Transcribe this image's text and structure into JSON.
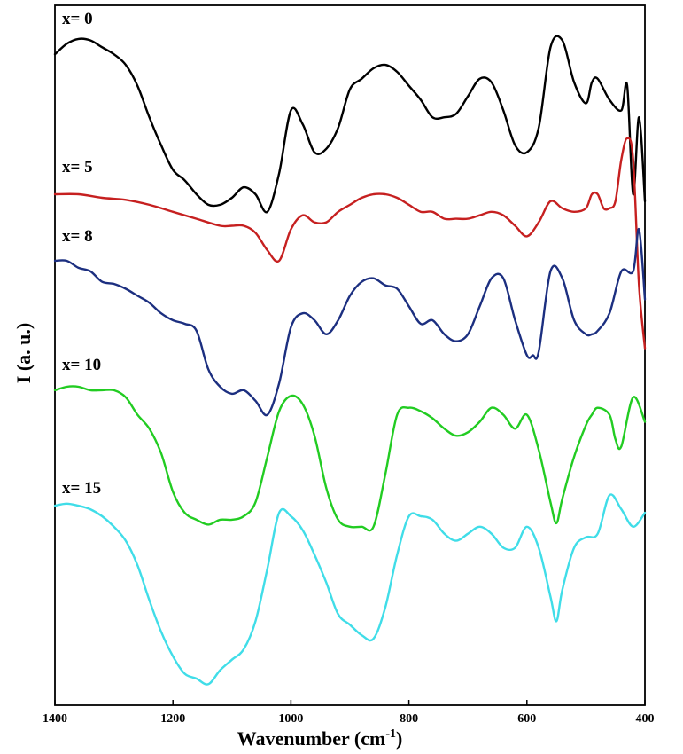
{
  "chart_data": {
    "type": "line",
    "xlabel": "Wavenumber (cm",
    "xlabel_superscript": "-1",
    "xlabel_close": ")",
    "ylabel": "I (a. u.)",
    "xlim": [
      1400,
      400
    ],
    "ylim": [
      0,
      100
    ],
    "x_reversed": true,
    "y_ticks_shown": false,
    "grid": false,
    "x_ticks": [
      {
        "value": 1400,
        "label": "1400"
      },
      {
        "value": 1200,
        "label": "1200"
      },
      {
        "value": 1000,
        "label": "1000"
      },
      {
        "value": 800,
        "label": "800"
      },
      {
        "value": 600,
        "label": "600"
      },
      {
        "value": 400,
        "label": "400"
      }
    ],
    "series": [
      {
        "name": "x= 0",
        "color": "#000000",
        "x": [
          1400,
          1380,
          1360,
          1340,
          1320,
          1300,
          1280,
          1260,
          1240,
          1220,
          1200,
          1180,
          1160,
          1140,
          1120,
          1100,
          1080,
          1060,
          1040,
          1020,
          1000,
          980,
          960,
          940,
          920,
          900,
          880,
          860,
          840,
          820,
          800,
          780,
          760,
          740,
          720,
          700,
          680,
          660,
          640,
          620,
          600,
          580,
          560,
          540,
          520,
          500,
          490,
          480,
          460,
          440,
          430,
          420,
          410,
          400
        ],
        "y": [
          93,
          94.5,
          95.2,
          95,
          94,
          93,
          91.5,
          88.5,
          84,
          80,
          76.5,
          75,
          73,
          71.5,
          71.5,
          72.5,
          74,
          73,
          70.5,
          76,
          85,
          83,
          79,
          79.5,
          82.5,
          88,
          89.5,
          91,
          91.5,
          90.5,
          88.5,
          86.5,
          84,
          84,
          84.5,
          87,
          89.5,
          89,
          85,
          80,
          79,
          82.5,
          94,
          95,
          89,
          86,
          89,
          89.5,
          86.5,
          85,
          88.5,
          73,
          84,
          72
        ]
      },
      {
        "name": "x= 5",
        "color": "#c62020",
        "x": [
          1400,
          1360,
          1320,
          1280,
          1240,
          1200,
          1160,
          1120,
          1100,
          1080,
          1060,
          1040,
          1020,
          1000,
          980,
          960,
          940,
          920,
          900,
          880,
          860,
          840,
          820,
          800,
          780,
          760,
          740,
          720,
          700,
          680,
          660,
          640,
          620,
          600,
          580,
          560,
          540,
          520,
          500,
          490,
          480,
          470,
          460,
          450,
          440,
          430,
          420,
          410,
          400
        ],
        "y": [
          73,
          73,
          72.5,
          72.2,
          71.5,
          70.5,
          69.5,
          68.5,
          68.5,
          68.5,
          67.5,
          65,
          63.5,
          68,
          70,
          69,
          69,
          70.5,
          71.5,
          72.5,
          73,
          73,
          72.5,
          71.5,
          70.5,
          70.5,
          69.5,
          69.5,
          69.5,
          70,
          70.5,
          70,
          68.5,
          67,
          69,
          72,
          71,
          70.5,
          71,
          73,
          73,
          71,
          71,
          72,
          78,
          81,
          78,
          60,
          51
        ]
      },
      {
        "name": "x= 8",
        "color": "#1c2f80",
        "x": [
          1400,
          1380,
          1360,
          1340,
          1320,
          1300,
          1280,
          1260,
          1240,
          1220,
          1200,
          1180,
          1160,
          1140,
          1120,
          1100,
          1080,
          1060,
          1040,
          1020,
          1000,
          980,
          960,
          940,
          920,
          900,
          880,
          860,
          840,
          820,
          800,
          780,
          760,
          740,
          720,
          700,
          680,
          660,
          640,
          620,
          600,
          590,
          580,
          560,
          540,
          520,
          500,
          490,
          480,
          460,
          440,
          420,
          410,
          400
        ],
        "y": [
          63.5,
          63.5,
          62.5,
          62,
          60.5,
          60.2,
          59.5,
          58.5,
          57.5,
          56,
          55,
          54.5,
          53.5,
          48,
          45.5,
          44.5,
          45,
          43.5,
          41.5,
          46,
          54,
          56,
          55,
          53,
          55,
          58.5,
          60.5,
          61,
          60,
          59.5,
          57,
          54.5,
          55,
          53,
          52,
          53,
          57,
          61,
          61,
          55,
          50,
          50,
          50.5,
          62,
          61,
          55,
          53,
          53,
          53.5,
          56,
          62,
          62,
          68,
          58
        ]
      },
      {
        "name": "x= 10",
        "color": "#22cc22",
        "x": [
          1400,
          1380,
          1360,
          1340,
          1320,
          1300,
          1280,
          1260,
          1240,
          1220,
          1200,
          1180,
          1160,
          1140,
          1120,
          1100,
          1080,
          1060,
          1040,
          1020,
          1000,
          980,
          960,
          940,
          920,
          900,
          880,
          860,
          840,
          820,
          800,
          780,
          760,
          740,
          720,
          700,
          680,
          660,
          640,
          620,
          600,
          580,
          560,
          550,
          540,
          520,
          500,
          490,
          480,
          460,
          450,
          440,
          420,
          400
        ],
        "y": [
          45,
          45.5,
          45.5,
          45,
          45,
          45,
          44,
          41.5,
          39.5,
          36,
          30.5,
          27.5,
          26.5,
          25.8,
          26.5,
          26.5,
          27,
          29,
          35.5,
          42,
          44.2,
          43,
          38.5,
          31,
          26.5,
          25.5,
          25.5,
          25.5,
          33,
          41.5,
          42.5,
          42,
          41,
          39.5,
          38.5,
          39,
          40.5,
          42.5,
          41.5,
          39.5,
          41.5,
          36.5,
          29,
          26,
          29.5,
          35.5,
          40,
          41.5,
          42.5,
          41.5,
          38,
          37,
          44,
          40.5
        ]
      },
      {
        "name": "x= 15",
        "color": "#40dde8",
        "x": [
          1400,
          1380,
          1360,
          1340,
          1320,
          1300,
          1280,
          1260,
          1240,
          1220,
          1200,
          1180,
          1160,
          1140,
          1120,
          1100,
          1080,
          1060,
          1040,
          1020,
          1000,
          980,
          960,
          940,
          920,
          900,
          880,
          860,
          840,
          820,
          800,
          780,
          760,
          740,
          720,
          700,
          680,
          660,
          640,
          620,
          600,
          580,
          560,
          550,
          540,
          520,
          500,
          480,
          460,
          440,
          420,
          400
        ],
        "y": [
          28.5,
          28.8,
          28.5,
          28,
          27,
          25.5,
          23.5,
          20,
          15,
          10.5,
          7,
          4.5,
          3.8,
          3,
          5,
          6.5,
          8,
          12,
          19.5,
          27.5,
          27,
          25,
          21.5,
          17.5,
          13,
          11.5,
          10,
          9.5,
          14,
          21.5,
          27,
          27,
          26.5,
          24.5,
          23.5,
          24.5,
          25.5,
          24.5,
          22.5,
          22.5,
          25.5,
          22.5,
          15.5,
          12,
          16.5,
          22.5,
          24,
          24.5,
          30,
          28,
          25.5,
          27.5
        ]
      }
    ]
  }
}
